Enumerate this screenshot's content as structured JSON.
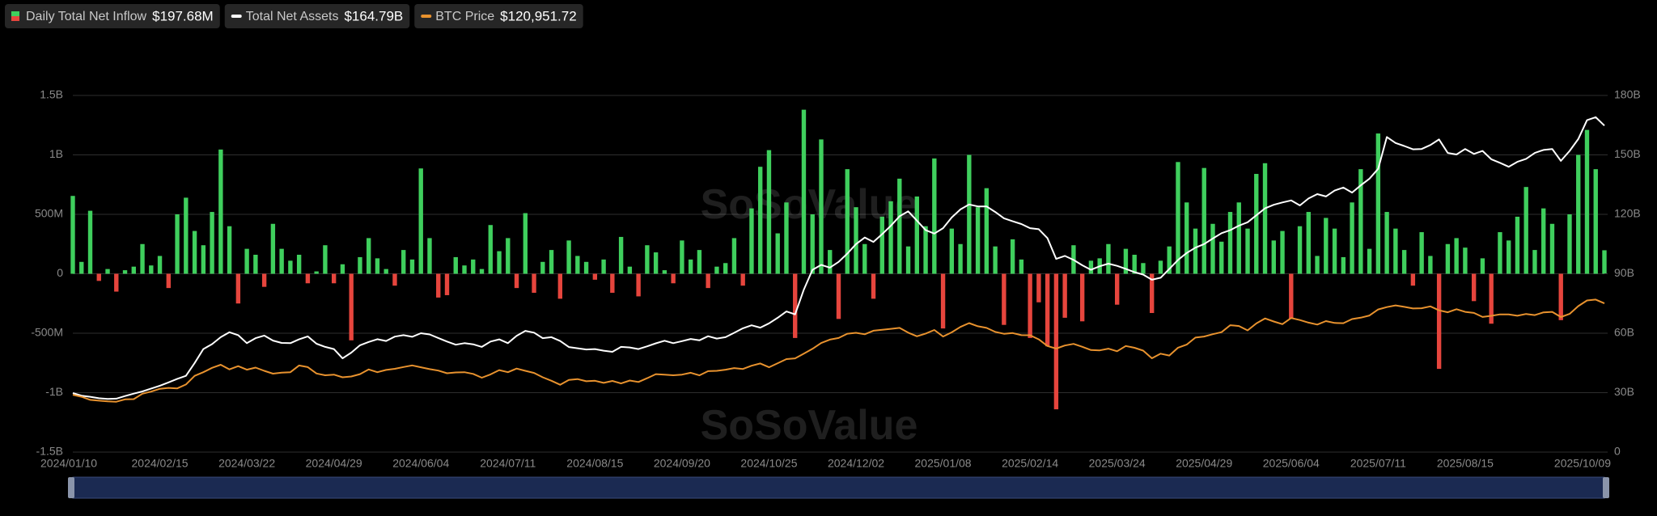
{
  "chart_data": {
    "type": "bar-line",
    "watermark": "SoSoValue",
    "categories": [
      "2024/01/10",
      null,
      null,
      null,
      null,
      null,
      null,
      null,
      null,
      null,
      "2024/02/15",
      null,
      null,
      null,
      null,
      null,
      null,
      null,
      null,
      null,
      "2024/03/22",
      null,
      null,
      null,
      null,
      null,
      null,
      null,
      null,
      null,
      "2024/04/29",
      null,
      null,
      null,
      null,
      null,
      null,
      null,
      null,
      null,
      "2024/06/04",
      null,
      null,
      null,
      null,
      null,
      null,
      null,
      null,
      null,
      "2024/07/11",
      null,
      null,
      null,
      null,
      null,
      null,
      null,
      null,
      null,
      "2024/08/15",
      null,
      null,
      null,
      null,
      null,
      null,
      null,
      null,
      null,
      "2024/09/20",
      null,
      null,
      null,
      null,
      null,
      null,
      null,
      null,
      null,
      "2024/10/25",
      null,
      null,
      null,
      null,
      null,
      null,
      null,
      null,
      null,
      "2024/12/02",
      null,
      null,
      null,
      null,
      null,
      null,
      null,
      null,
      null,
      "2025/01/08",
      null,
      null,
      null,
      null,
      null,
      null,
      null,
      null,
      null,
      "2025/02/14",
      null,
      null,
      null,
      null,
      null,
      null,
      null,
      null,
      null,
      "2025/03/24",
      null,
      null,
      null,
      null,
      null,
      null,
      null,
      null,
      null,
      "2025/04/29",
      null,
      null,
      null,
      null,
      null,
      null,
      null,
      null,
      null,
      "2025/06/04",
      null,
      null,
      null,
      null,
      null,
      null,
      null,
      null,
      null,
      "2025/07/11",
      null,
      null,
      null,
      null,
      null,
      null,
      null,
      null,
      null,
      "2025/08/15",
      null,
      null,
      null,
      null,
      null,
      null,
      null,
      null,
      null,
      null,
      null,
      null,
      null,
      null,
      null,
      "2025/10/09"
    ],
    "ylim": [
      -1500,
      1500
    ],
    "yticks": [
      {
        "value": -1500,
        "label": "-1.5B"
      },
      {
        "value": -1000,
        "label": "-1B"
      },
      {
        "value": -500,
        "label": "-500M"
      },
      0,
      {
        "value": 500,
        "label": "500M"
      },
      {
        "value": 1000,
        "label": "1B"
      },
      {
        "value": 1500,
        "label": "1.5B"
      }
    ],
    "y2lim": [
      0,
      180
    ],
    "y2ticks": [
      0,
      {
        "value": 30,
        "label": "30B"
      },
      {
        "value": 60,
        "label": "60B"
      },
      {
        "value": 90,
        "label": "90B"
      },
      {
        "value": 120,
        "label": "120B"
      },
      {
        "value": 150,
        "label": "150B"
      },
      {
        "value": 180,
        "label": "180B"
      }
    ],
    "y3lim": [
      0,
      290000
    ],
    "grid": true,
    "series": [
      {
        "name": "Daily Total Net Inflow",
        "latest_label": "$197.68M",
        "type": "bar",
        "color": "#3fcf5d",
        "negative_color": "#e6453d",
        "values": [
          655,
          100,
          530,
          -60,
          40,
          -150,
          30,
          60,
          250,
          70,
          150,
          -120,
          500,
          640,
          360,
          240,
          520,
          1045,
          400,
          -250,
          210,
          160,
          -110,
          420,
          210,
          110,
          160,
          -80,
          20,
          240,
          -80,
          80,
          -560,
          140,
          300,
          130,
          40,
          -100,
          200,
          120,
          886,
          300,
          -200,
          -180,
          140,
          70,
          120,
          40,
          410,
          190,
          300,
          -120,
          510,
          -160,
          100,
          200,
          -210,
          280,
          150,
          100,
          -50,
          120,
          -160,
          310,
          60,
          -190,
          240,
          180,
          30,
          -80,
          280,
          120,
          200,
          -120,
          60,
          90,
          300,
          -100,
          550,
          900,
          1040,
          340,
          600,
          -540,
          1380,
          500,
          1130,
          200,
          -380,
          880,
          560,
          250,
          -210,
          480,
          610,
          800,
          230,
          650,
          400,
          970,
          -460,
          380,
          250,
          1000,
          560,
          720,
          230,
          -430,
          290,
          120,
          -540,
          -240,
          -610,
          -1140,
          -370,
          240,
          -400,
          110,
          130,
          250,
          -260,
          210,
          160,
          90,
          -330,
          110,
          230,
          940,
          600,
          380,
          890,
          420,
          270,
          520,
          600,
          380,
          840,
          930,
          280,
          360,
          -380,
          400,
          520,
          150,
          470,
          380,
          140,
          600,
          880,
          210,
          1180,
          520,
          380,
          200,
          -100,
          350,
          150,
          -800,
          250,
          300,
          220,
          -230,
          130,
          -420,
          350,
          280,
          480,
          730,
          200,
          550,
          420,
          -390,
          500,
          1000,
          1210,
          880,
          197.68
        ]
      },
      {
        "name": "Total Net Assets",
        "latest_label": "$164.79B",
        "type": "line",
        "axis": "y2",
        "color": "#ffffff",
        "values": [
          29.8,
          28.5,
          27.9,
          27.2,
          26.8,
          27.0,
          28.3,
          29.5,
          30.6,
          32.1,
          33.5,
          35.2,
          37.0,
          38.5,
          45.0,
          52.0,
          54.5,
          58.0,
          60.5,
          59.0,
          55.0,
          57.5,
          58.8,
          56.3,
          55.1,
          55.0,
          56.9,
          58.4,
          54.7,
          53.1,
          52.0,
          47.3,
          50.2,
          53.9,
          55.6,
          57.0,
          56.1,
          58.3,
          59.0,
          58.2,
          60.0,
          59.4,
          57.6,
          55.8,
          54.2,
          55.0,
          54.4,
          53.1,
          55.8,
          56.9,
          55.0,
          58.7,
          61.2,
          60.3,
          57.5,
          58.0,
          56.1,
          53.0,
          52.4,
          51.8,
          52.0,
          51.2,
          50.6,
          53.1,
          52.8,
          52.0,
          53.4,
          54.9,
          56.2,
          55.0,
          56.0,
          57.1,
          56.4,
          58.5,
          57.3,
          58.0,
          60.2,
          62.5,
          64.0,
          62.8,
          65.0,
          67.8,
          71.0,
          69.5,
          82.0,
          92.0,
          94.5,
          93.1,
          96.0,
          100.2,
          105.0,
          108.3,
          106.1,
          110.0,
          114.2,
          119.0,
          121.5,
          116.8,
          112.0,
          110.3,
          113.0,
          118.4,
          122.5,
          125.0,
          124.0,
          124.0,
          121.2,
          118.0,
          116.5,
          115.1,
          113.0,
          112.5,
          108.0,
          97.5,
          99.0,
          97.0,
          94.3,
          92.0,
          93.8,
          95.1,
          94.0,
          92.5,
          90.8,
          89.6,
          87.0,
          88.0,
          92.4,
          97.0,
          100.5,
          103.2,
          105.0,
          107.8,
          110.5,
          112.0,
          114.3,
          116.0,
          119.5,
          123.0,
          124.8,
          126.0,
          127.0,
          124.5,
          128.0,
          130.2,
          129.0,
          132.0,
          133.5,
          131.0,
          134.6,
          138.0,
          143.0,
          159.0,
          156.0,
          154.5,
          152.8,
          153.0,
          155.0,
          157.8,
          151.0,
          150.2,
          153.0,
          150.5,
          152.0,
          147.8,
          146.0,
          144.0,
          146.5,
          148.0,
          151.0,
          152.5,
          153.0,
          147.0,
          152.0,
          158.0,
          167.5,
          169.0,
          164.79
        ]
      },
      {
        "name": "BTC Price",
        "latest_label": "$120,951.72",
        "type": "line",
        "axis": "y3",
        "color": "#e8922e",
        "values": [
          46600,
          45000,
          42500,
          41800,
          41200,
          41000,
          42900,
          43100,
          47500,
          49200,
          51500,
          52200,
          51800,
          55000,
          62000,
          65000,
          68500,
          71000,
          67300,
          69900,
          67000,
          68700,
          66100,
          63800,
          64600,
          65000,
          70400,
          69100,
          63900,
          62500,
          63000,
          60800,
          61500,
          63400,
          67200,
          65000,
          66800,
          67700,
          69200,
          70500,
          69000,
          67500,
          66300,
          64100,
          64800,
          65000,
          63600,
          60500,
          63200,
          66700,
          65000,
          67900,
          66100,
          64400,
          60800,
          58000,
          54800,
          58700,
          59400,
          57600,
          58000,
          56300,
          57900,
          55800,
          58200,
          57000,
          60100,
          63400,
          62900,
          62500,
          63000,
          64500,
          62400,
          65800,
          66100,
          67000,
          68300,
          67600,
          70200,
          72100,
          69000,
          72300,
          75600,
          76200,
          80100,
          84000,
          88700,
          91500,
          92800,
          96300,
          97000,
          95800,
          98700,
          99500,
          100200,
          101000,
          97100,
          94200,
          96400,
          99300,
          94000,
          97400,
          101800,
          104900,
          102300,
          101000,
          97700,
          96200,
          96800,
          95100,
          95000,
          91700,
          86300,
          84200,
          86700,
          88000,
          85600,
          83000,
          82700,
          84100,
          82000,
          86300,
          84800,
          82500,
          76300,
          80000,
          78500,
          84900,
          87400,
          93100,
          94000,
          95900,
          97500,
          103200,
          102500,
          99000,
          104600,
          108700,
          106200,
          104000,
          109000,
          107400,
          105300,
          103700,
          106500,
          105000,
          104800,
          108200,
          109300,
          111100,
          116000,
          117900,
          119300,
          118100,
          116800,
          117000,
          118500,
          115300,
          113700,
          116200,
          114000,
          113200,
          109900,
          110800,
          112000,
          112000,
          110900,
          112300,
          111400,
          113600,
          114000,
          109800,
          112400,
          118700,
          123300,
          124000,
          120951.72
        ]
      }
    ]
  }
}
